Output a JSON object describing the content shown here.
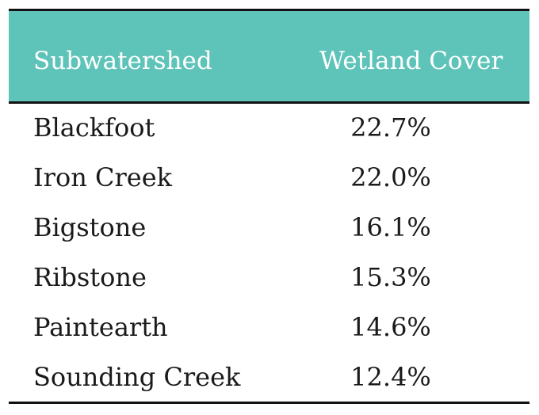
{
  "table": {
    "headers": [
      "Subwatershed",
      "Wetland Cover"
    ],
    "rows": [
      {
        "name": "Blackfoot",
        "value": "22.7%"
      },
      {
        "name": "Iron Creek",
        "value": "22.0%"
      },
      {
        "name": "Bigstone",
        "value": "16.1%"
      },
      {
        "name": "Ribstone",
        "value": "15.3%"
      },
      {
        "name": "Paintearth",
        "value": "14.6%"
      },
      {
        "name": "Sounding Creek",
        "value": "12.4%"
      }
    ]
  },
  "colors": {
    "header_bg": "#5ec3b8",
    "header_text": "#ffffff",
    "rule": "#111111",
    "body_text": "#1a1a1a"
  }
}
